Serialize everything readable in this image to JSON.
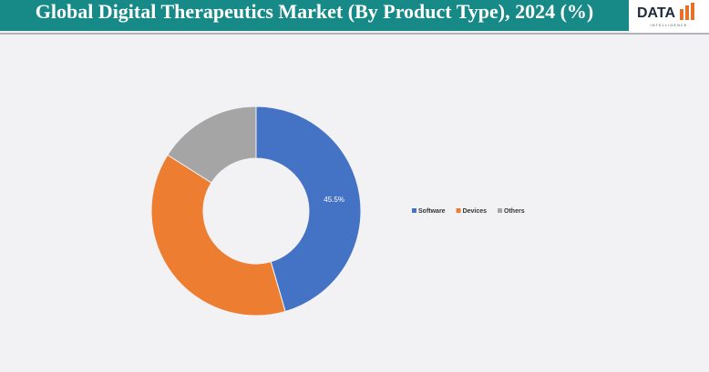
{
  "chart_data": {
    "type": "donut",
    "title": "Global Digital Therapeutics Market (By Product Type), 2024 (%)",
    "categories": [
      "Software",
      "Devices",
      "Others"
    ],
    "values": [
      45.5,
      38.5,
      16
    ],
    "value_labels": [
      "45.5%",
      null,
      null
    ],
    "colors": [
      "#4472c4",
      "#ed7d31",
      "#a5a5a5"
    ],
    "legend": "right"
  },
  "logo": {
    "text": "DATA",
    "subtext": "INTELLIGENCE"
  }
}
